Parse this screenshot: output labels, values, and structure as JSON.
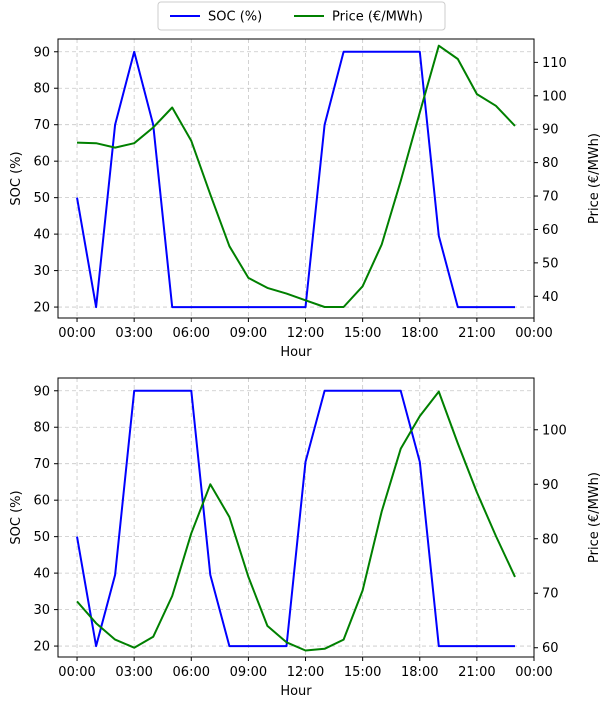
{
  "legend": {
    "items": [
      {
        "label": "SOC (%)",
        "color": "#0000ff"
      },
      {
        "label": "Price (€/MWh)",
        "color": "#008000"
      }
    ],
    "placement": "top-center"
  },
  "chart_data": [
    {
      "type": "line",
      "xlabel": "Hour",
      "ylabel": "SOC (%)",
      "y2label": "Price (€/MWh)",
      "grid": true,
      "x": [
        0,
        1,
        2,
        3,
        4,
        5,
        6,
        7,
        8,
        9,
        10,
        11,
        12,
        13,
        14,
        15,
        16,
        17,
        18,
        19,
        20,
        21,
        22,
        23
      ],
      "xlim": [
        -1,
        24
      ],
      "xticks": [
        0,
        3,
        6,
        9,
        12,
        15,
        18,
        21,
        24
      ],
      "xtick_labels": [
        "00:00",
        "03:00",
        "06:00",
        "09:00",
        "12:00",
        "15:00",
        "18:00",
        "21:00",
        "00:00"
      ],
      "ylim": [
        17,
        93.5
      ],
      "yticks": [
        20,
        30,
        40,
        50,
        60,
        70,
        80,
        90
      ],
      "y2lim": [
        33.5,
        117
      ],
      "y2ticks": [
        40,
        50,
        60,
        70,
        80,
        90,
        100,
        110
      ],
      "series": [
        {
          "name": "SOC (%)",
          "axis": "left",
          "color": "#0000ff",
          "values": [
            50,
            20,
            70,
            90,
            70,
            20,
            20,
            20,
            20,
            20,
            20,
            20,
            20,
            70,
            90,
            90,
            90,
            90,
            90,
            39.5,
            20,
            20,
            20,
            20
          ]
        },
        {
          "name": "Price (€/MWh)",
          "axis": "right",
          "color": "#008000",
          "values": [
            86,
            85.8,
            84.5,
            85.8,
            90.5,
            96.5,
            86.5,
            70.5,
            55,
            45.5,
            42.5,
            40.8,
            38.8,
            36.8,
            36.8,
            43,
            55.5,
            74.5,
            95,
            115,
            111,
            100.5,
            97,
            91
          ]
        }
      ]
    },
    {
      "type": "line",
      "xlabel": "Hour",
      "ylabel": "SOC (%)",
      "y2label": "Price (€/MWh)",
      "grid": true,
      "x": [
        0,
        1,
        2,
        3,
        4,
        5,
        6,
        7,
        8,
        9,
        10,
        11,
        12,
        13,
        14,
        15,
        16,
        17,
        18,
        19,
        20,
        21,
        22,
        23
      ],
      "xlim": [
        -1,
        24
      ],
      "xticks": [
        0,
        3,
        6,
        9,
        12,
        15,
        18,
        21,
        24
      ],
      "xtick_labels": [
        "00:00",
        "03:00",
        "06:00",
        "09:00",
        "12:00",
        "15:00",
        "18:00",
        "21:00",
        "00:00"
      ],
      "ylim": [
        17,
        93.5
      ],
      "yticks": [
        20,
        30,
        40,
        50,
        60,
        70,
        80,
        90
      ],
      "y2lim": [
        58.3,
        109.5
      ],
      "y2ticks": [
        60,
        70,
        80,
        90,
        100
      ],
      "series": [
        {
          "name": "SOC (%)",
          "axis": "left",
          "color": "#0000ff",
          "values": [
            50,
            20,
            39.5,
            90,
            90,
            90,
            90,
            39.5,
            20,
            20,
            20,
            20,
            70.5,
            90,
            90,
            90,
            90,
            90,
            70.5,
            20,
            20,
            20,
            20,
            20
          ]
        },
        {
          "name": "Price (€/MWh)",
          "axis": "right",
          "color": "#008000",
          "values": [
            68.5,
            64.5,
            61.5,
            60,
            62,
            69.5,
            81,
            90,
            84,
            73,
            64,
            61,
            59.5,
            59.8,
            61.5,
            70.5,
            85,
            96.5,
            102.5,
            107,
            97.5,
            88.5,
            80.5,
            73
          ]
        }
      ]
    }
  ]
}
